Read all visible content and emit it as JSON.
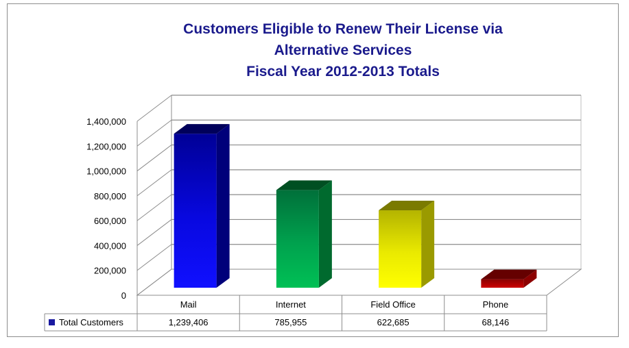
{
  "title_lines": [
    "Customers Eligible to Renew Their License via",
    "Alternative Services",
    "Fiscal Year 2012-2013 Totals"
  ],
  "chart_data": {
    "type": "bar",
    "title": "Customers Eligible to Renew Their License via Alternative Services Fiscal Year 2012-2013 Totals",
    "categories": [
      "Mail",
      "Internet",
      "Field Office",
      "Phone"
    ],
    "series": [
      {
        "name": "Total Customers",
        "values": [
          1239406,
          785955,
          622685,
          68146
        ]
      }
    ],
    "value_labels": [
      "1,239,406",
      "785,955",
      "622,685",
      "68,146"
    ],
    "bar_colors": [
      "#0a0ae6",
      "#00b04f",
      "#e8e800",
      "#b00000"
    ],
    "legend_color": "#1a1aa0",
    "ylim": [
      0,
      1400000
    ],
    "yticks": [
      0,
      200000,
      400000,
      600000,
      800000,
      1000000,
      1200000,
      1400000
    ],
    "ytick_labels": [
      "0",
      "200,000",
      "400,000",
      "600,000",
      "800,000",
      "1,000,000",
      "1,200,000",
      "1,400,000"
    ],
    "xlabel": "",
    "ylabel": "",
    "grid": true,
    "data_table": true
  }
}
